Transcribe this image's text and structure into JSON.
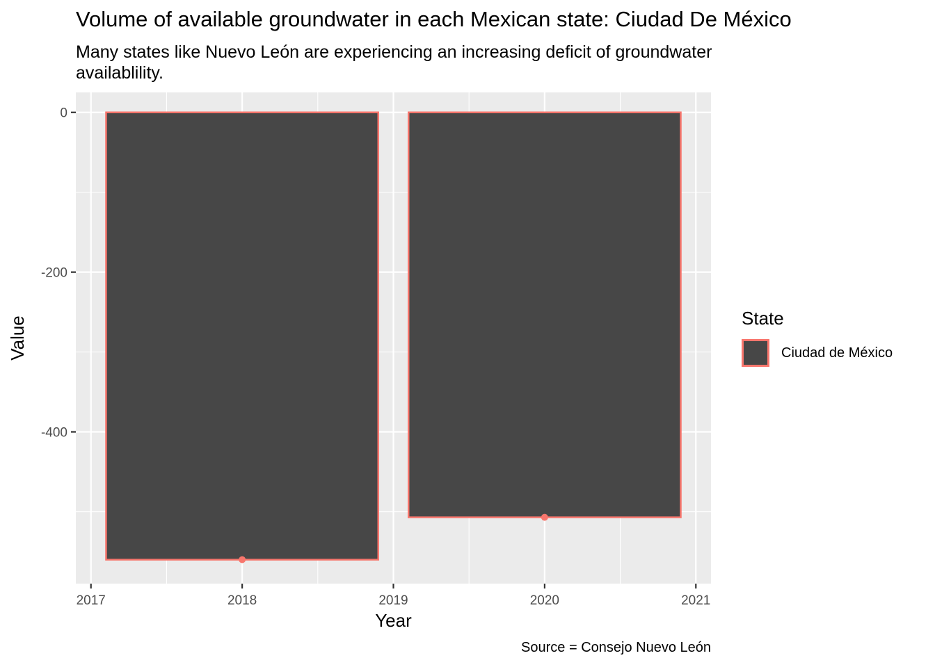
{
  "chart_data": {
    "type": "bar",
    "title": "Volume of available groundwater in each Mexican state: Ciudad De México",
    "subtitle": "Many states like Nuevo León are experiencing an increasing deficit of groundwater availablility.",
    "caption": "Source = Consejo Nuevo León",
    "xlabel": "Year",
    "ylabel": "Value",
    "xlim": [
      2016.9,
      2021.1
    ],
    "ylim": [
      -590,
      25
    ],
    "x_ticks": [
      2017,
      2018,
      2019,
      2020,
      2021
    ],
    "y_ticks": [
      0,
      -200,
      -400
    ],
    "bar_width": 1.8,
    "grid": true,
    "legend": {
      "title": "State",
      "position": "right",
      "entries": [
        "Ciudad de México"
      ]
    },
    "series": [
      {
        "name": "Ciudad de México",
        "x": [
          2018,
          2020
        ],
        "values": [
          -560,
          -507
        ],
        "fill": "#474747",
        "outline": "#F8766D"
      }
    ]
  }
}
